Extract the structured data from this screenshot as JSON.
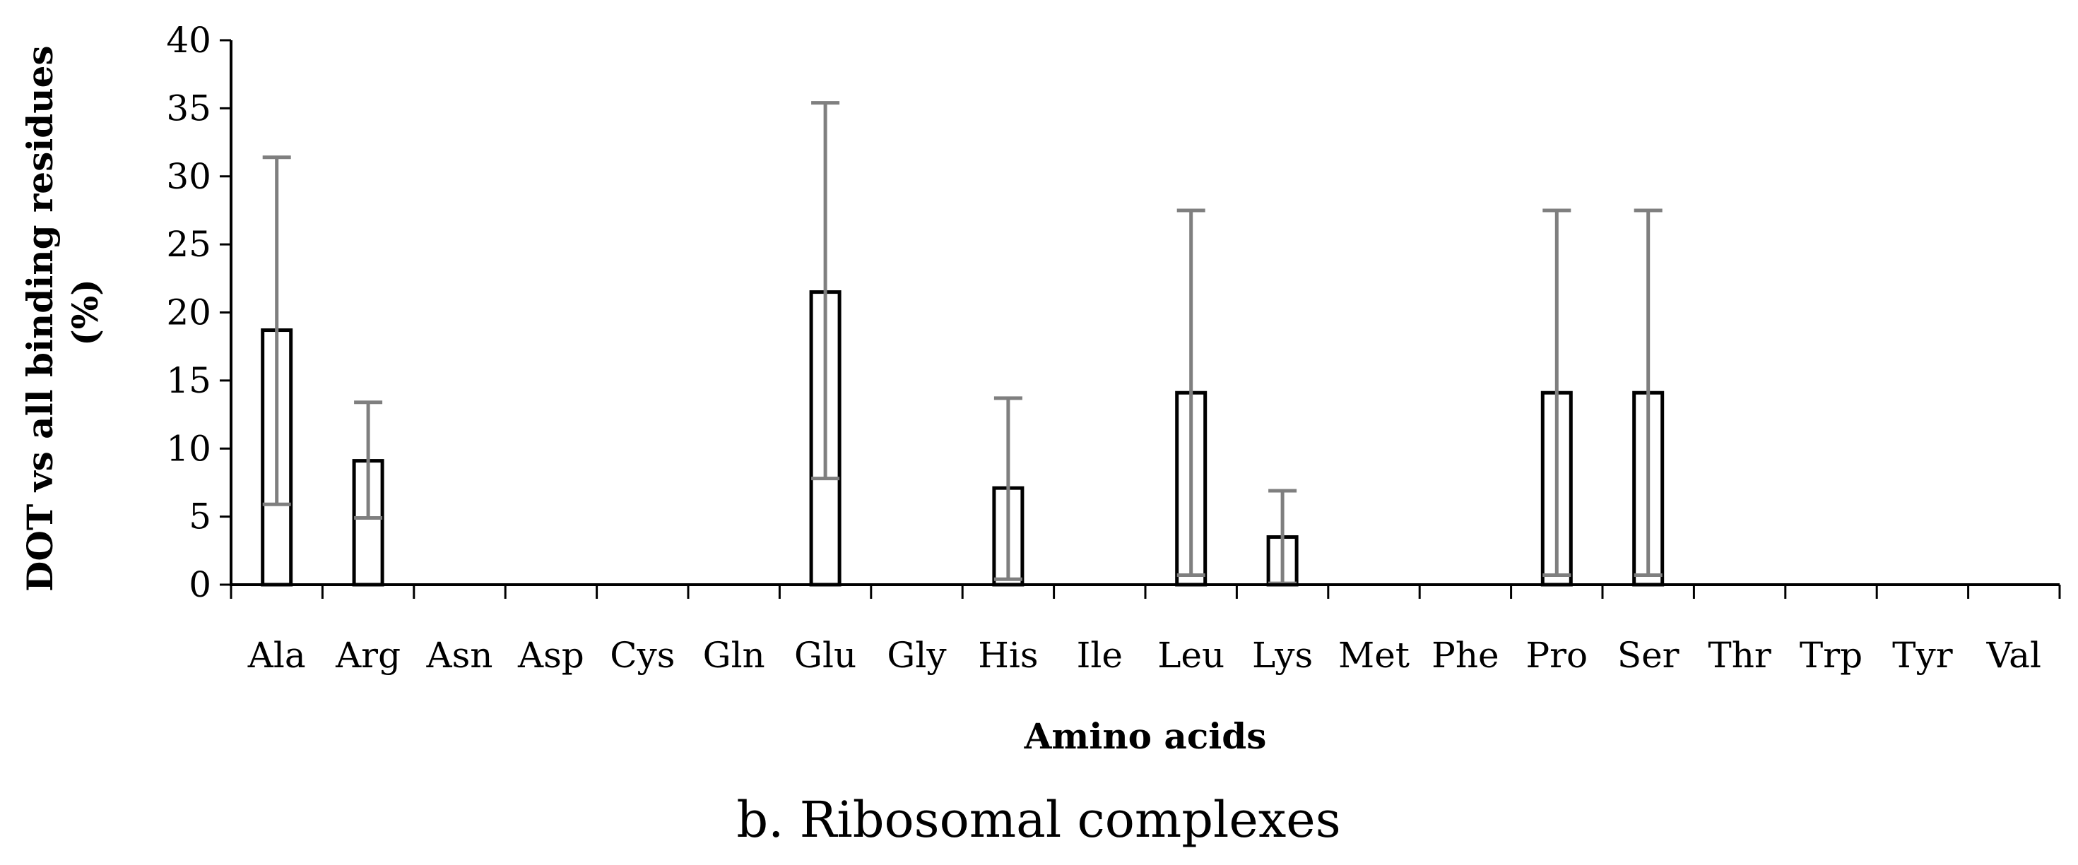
{
  "chart_data": {
    "type": "bar",
    "caption": "b. Ribosomal complexes",
    "xlabel": "Amino acids",
    "ylabel_lines": [
      "DOT vs all binding residues",
      "(%)"
    ],
    "ylim": [
      0,
      40
    ],
    "yticks": [
      0,
      5,
      10,
      15,
      20,
      25,
      30,
      35,
      40
    ],
    "grid": false,
    "legend": "none",
    "categories": [
      "Ala",
      "Arg",
      "Asn",
      "Asp",
      "Cys",
      "Gln",
      "Glu",
      "Gly",
      "His",
      "Ile",
      "Leu",
      "Lys",
      "Met",
      "Phe",
      "Pro",
      "Ser",
      "Thr",
      "Trp",
      "Tyr",
      "Val"
    ],
    "values": [
      18.7,
      9.1,
      0,
      0,
      0,
      0,
      21.5,
      0,
      7.1,
      0,
      14.1,
      3.5,
      0,
      0,
      14.1,
      14.1,
      0,
      0,
      0,
      0
    ],
    "error_low": [
      5.9,
      4.9,
      null,
      null,
      null,
      null,
      7.8,
      null,
      0.4,
      null,
      0.7,
      0.1,
      null,
      null,
      0.7,
      0.7,
      null,
      null,
      null,
      null
    ],
    "error_high": [
      31.4,
      13.4,
      null,
      null,
      null,
      null,
      35.4,
      null,
      13.7,
      null,
      27.5,
      6.9,
      null,
      null,
      27.5,
      27.5,
      null,
      null,
      null,
      null
    ],
    "colors": {
      "bar_fill": "#ffffff",
      "bar_stroke": "#000000",
      "error_bar": "#7f7f7f",
      "axis": "#000000"
    }
  }
}
